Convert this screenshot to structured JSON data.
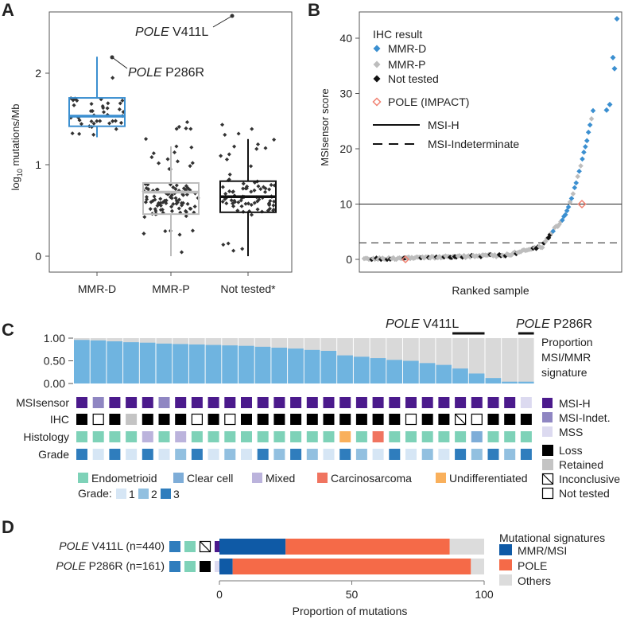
{
  "panel_labels": [
    "A",
    "B",
    "C",
    "D"
  ],
  "chart_data": [
    {
      "id": "A",
      "type": "box",
      "ylabel_prefix": "log",
      "ylabel_sub": "10",
      "ylabel_suffix": " mutations/Mb",
      "ylim": [
        -0.05,
        2.7
      ],
      "yticks": [
        0,
        1,
        2
      ],
      "categories": [
        "MMR-D",
        "MMR-P",
        "Not tested*"
      ],
      "colors": [
        "#3b8fd0",
        "#bdbdbd",
        "#111111"
      ],
      "boxes": [
        {
          "whisker_low": 1.3,
          "q1": 1.42,
          "median": 1.53,
          "q3": 1.73,
          "whisker_high": 2.18
        },
        {
          "whisker_low": 0.0,
          "q1": 0.46,
          "median": 0.7,
          "q3": 0.8,
          "whisker_high": 1.2
        },
        {
          "whisker_low": 0.0,
          "q1": 0.48,
          "median": 0.65,
          "q3": 0.82,
          "whisker_high": 1.28
        }
      ],
      "outliers": [
        {
          "label_italic": "POLE",
          "label_rest": " V411L",
          "category": 0,
          "y": 2.6
        },
        {
          "label_italic": "POLE",
          "label_rest": " P286R",
          "category": 0,
          "y": 2.2
        }
      ]
    },
    {
      "id": "B",
      "type": "scatter",
      "xlabel": "Ranked sample",
      "ylabel": "MSIsensor  score",
      "ylim": [
        -1,
        45
      ],
      "yticks": [
        0,
        10,
        20,
        30,
        40
      ],
      "thresholds": [
        {
          "name": "MSI-H",
          "y": 10,
          "dash": false
        },
        {
          "name": "MSI-Indeterminate",
          "y": 3,
          "dash": true
        }
      ],
      "legend_title": "IHC result",
      "legend": [
        {
          "name": "MMR-D",
          "color": "#3b8fd0",
          "shape": "diamond"
        },
        {
          "name": "MMR-P",
          "color": "#bdbdbd",
          "shape": "diamond"
        },
        {
          "name": "Not tested",
          "color": "#111111",
          "shape": "diamond"
        },
        {
          "name": "POLE (IMPACT)",
          "color": "#f08070",
          "shape": "open-diamond"
        }
      ],
      "line_legend": [
        {
          "name": "MSI-H",
          "dash": false
        },
        {
          "name": "MSI-Indeterminate",
          "dash": true
        }
      ]
    },
    {
      "id": "C",
      "type": "bar",
      "ylabel_lines": [
        "Proportion",
        "MSI/MMR",
        "signature"
      ],
      "yticks": [
        "1.00",
        "0.50",
        "0.00"
      ],
      "values": [
        0.96,
        0.95,
        0.93,
        0.91,
        0.9,
        0.88,
        0.87,
        0.86,
        0.85,
        0.84,
        0.83,
        0.81,
        0.79,
        0.77,
        0.74,
        0.72,
        0.62,
        0.59,
        0.56,
        0.52,
        0.5,
        0.45,
        0.41,
        0.33,
        0.22,
        0.12,
        0.04,
        0.04
      ],
      "brackets": [
        {
          "label_italic": "POLE",
          "label_rest": " V411L",
          "from": 23,
          "to": 24
        },
        {
          "label_italic": "POLE",
          "label_rest": " P286R",
          "from": 27,
          "to": 27
        }
      ],
      "row_labels": [
        "MSIsensor",
        "IHC",
        "Histology",
        "Grade"
      ],
      "msisensor": [
        "H",
        "I",
        "H",
        "H",
        "H",
        "I",
        "H",
        "H",
        "H",
        "H",
        "H",
        "H",
        "H",
        "H",
        "H",
        "H",
        "H",
        "H",
        "H",
        "H",
        "H",
        "H",
        "H",
        "H",
        "H",
        "H",
        "H",
        "S"
      ],
      "ihc": [
        "L",
        "N",
        "L",
        "R",
        "L",
        "L",
        "L",
        "N",
        "L",
        "N",
        "L",
        "L",
        "L",
        "L",
        "L",
        "L",
        "L",
        "L",
        "L",
        "L",
        "N",
        "L",
        "L",
        "X",
        "N",
        "L",
        "L",
        "L"
      ],
      "histology": [
        "E",
        "E",
        "E",
        "E",
        "M",
        "E",
        "M",
        "E",
        "E",
        "E",
        "E",
        "E",
        "E",
        "E",
        "E",
        "E",
        "U",
        "E",
        "C",
        "E",
        "E",
        "E",
        "E",
        "E",
        "K",
        "E",
        "E",
        "E"
      ],
      "grade": [
        "3",
        "1",
        "3",
        "1",
        "3",
        "1",
        "2",
        "3",
        "1",
        "2",
        "1",
        "3",
        "2",
        "3",
        "2",
        "1",
        "3",
        "2",
        "1",
        "3",
        "1",
        "2",
        "1",
        "3",
        "2",
        "3",
        "2",
        "3"
      ],
      "legend_msi": [
        {
          "name": "MSI-H",
          "color": "#4b1a8c"
        },
        {
          "name": "MSI-Indet.",
          "color": "#8f86c2"
        },
        {
          "name": "MSS",
          "color": "#dcdaf0"
        }
      ],
      "legend_ihc": [
        {
          "name": "Loss",
          "style": "black"
        },
        {
          "name": "Retained",
          "style": "gray"
        },
        {
          "name": "Inconclusive",
          "style": "slash"
        },
        {
          "name": "Not tested",
          "style": "open"
        }
      ],
      "legend_histology": [
        {
          "name": "Endometrioid",
          "color": "#7ed2b8"
        },
        {
          "name": "Clear cell",
          "color": "#7eadd8"
        },
        {
          "name": "Mixed",
          "color": "#bbb3dc"
        },
        {
          "name": "Carcinosarcoma",
          "color": "#f07460"
        },
        {
          "name": "Undifferentiated",
          "color": "#f9b05c"
        }
      ],
      "grade_prefix": "Grade:",
      "legend_grade": [
        {
          "name": "1",
          "color": "#d6e6f5"
        },
        {
          "name": "2",
          "color": "#92c0e0"
        },
        {
          "name": "3",
          "color": "#2f7dbd"
        }
      ]
    },
    {
      "id": "D",
      "type": "stacked-bar",
      "xlabel": "Proportion of mutations",
      "xlim": [
        0,
        100
      ],
      "xticks": [
        0,
        50,
        100
      ],
      "rows": [
        {
          "label_italic": "POLE",
          "label_rest": " V411L (n=440)",
          "tiles": [
            "3",
            "E",
            "X",
            "H"
          ],
          "values": [
            25,
            62,
            13
          ]
        },
        {
          "label_italic": "POLE",
          "label_rest": " P286R (n=161)",
          "tiles": [
            "3",
            "E",
            "L",
            "S"
          ],
          "values": [
            5,
            90,
            5
          ]
        }
      ],
      "legend_title": "Mutational signatures",
      "legend": [
        {
          "name": "MMR/MSI",
          "color": "#0f5aa6"
        },
        {
          "name": "POLE",
          "color": "#f56a48"
        },
        {
          "name": "Others",
          "color": "#dcdcdc"
        }
      ]
    }
  ]
}
